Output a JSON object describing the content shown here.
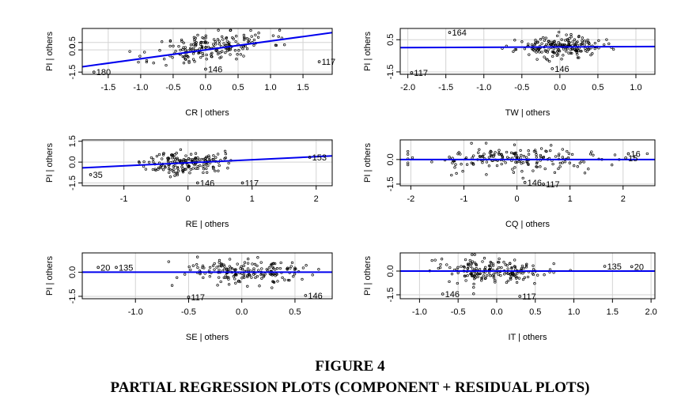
{
  "caption": {
    "number": "FIGURE 4",
    "title": "PARTIAL REGRESSION PLOTS (COMPONENT + RESIDUAL PLOTS)"
  },
  "colors": {
    "fit_line": "#0000ee",
    "points": "#000000",
    "grid": "#d3d3d3",
    "frame": "#000000"
  },
  "chart_data": [
    {
      "type": "scatter",
      "id": "cr",
      "xlabel": "CR | others",
      "ylabel": "PI | others",
      "xlim": [
        -1.9,
        1.95
      ],
      "ylim": [
        -1.65,
        1.45
      ],
      "xticks": [
        "-1.5",
        "-1.0",
        "-0.5",
        "0.0",
        "0.5",
        "1.0",
        "1.5"
      ],
      "yticks": [
        "-1.5",
        "0.0",
        "0.5"
      ],
      "fit": {
        "intercept": 0.0,
        "slope": 0.6
      },
      "center": [
        0.1,
        0.15
      ],
      "spread": [
        0.45,
        0.5
      ],
      "n": 190,
      "seed": 11,
      "labeled_points": [
        {
          "label": "180",
          "x": -1.72,
          "y": -1.5
        },
        {
          "label": "146",
          "x": 0.0,
          "y": -1.3
        },
        {
          "label": "117",
          "x": 1.75,
          "y": -0.8
        }
      ]
    },
    {
      "type": "scatter",
      "id": "tw",
      "xlabel": "TW | others",
      "ylabel": "PI | others",
      "xlim": [
        -2.1,
        1.25
      ],
      "ylim": [
        -1.65,
        1.2
      ],
      "xticks": [
        "-2.0",
        "-1.5",
        "-1.0",
        "-0.5",
        "0.0",
        "0.5",
        "1.0"
      ],
      "yticks": [
        "-1.5",
        "0.5"
      ],
      "fit": {
        "intercept": 0.05,
        "slope": 0.02
      },
      "center": [
        0.0,
        0.0
      ],
      "spread": [
        0.28,
        0.3
      ],
      "n": 190,
      "seed": 23,
      "labeled_points": [
        {
          "label": "164",
          "x": -1.45,
          "y": 0.95
        },
        {
          "label": "117",
          "x": -1.95,
          "y": -1.55
        },
        {
          "label": "146",
          "x": -0.1,
          "y": -1.3
        }
      ]
    },
    {
      "type": "scatter",
      "id": "re",
      "xlabel": "RE | others",
      "ylabel": "PI | others",
      "xlim": [
        -1.65,
        2.25
      ],
      "ylim": [
        -1.7,
        1.6
      ],
      "xticks": [
        "-1",
        "0",
        "1",
        "2"
      ],
      "yticks": [
        "-1.5",
        "0.0",
        "1.5"
      ],
      "fit": {
        "intercept": -0.05,
        "slope": 0.22
      },
      "center": [
        -0.05,
        0.0
      ],
      "spread": [
        0.3,
        0.4
      ],
      "n": 170,
      "seed": 37,
      "labeled_points": [
        {
          "label": "35",
          "x": -1.52,
          "y": -0.9
        },
        {
          "label": "146",
          "x": 0.15,
          "y": -1.5
        },
        {
          "label": "117",
          "x": 0.85,
          "y": -1.5
        },
        {
          "label": "153",
          "x": 1.9,
          "y": 0.35
        }
      ]
    },
    {
      "type": "scatter",
      "id": "cq",
      "xlabel": "CQ | others",
      "ylabel": "PI | others",
      "xlim": [
        -2.2,
        2.6
      ],
      "ylim": [
        -1.6,
        1.2
      ],
      "xticks": [
        "-2",
        "-1",
        "0",
        "1",
        "2"
      ],
      "yticks": [
        "-1.5",
        "0.0"
      ],
      "fit": {
        "intercept": 0.0,
        "slope": 0.0
      },
      "center": [
        0.0,
        0.0
      ],
      "spread": [
        0.95,
        0.4
      ],
      "n": 180,
      "seed": 53,
      "labeled_points": [
        {
          "label": "146",
          "x": 0.15,
          "y": -1.4
        },
        {
          "label": "117",
          "x": 0.5,
          "y": -1.5
        },
        {
          "label": "16",
          "x": 2.1,
          "y": 0.35
        },
        {
          "label": "15",
          "x": 2.05,
          "y": 0.1
        }
      ]
    },
    {
      "type": "scatter",
      "id": "se",
      "xlabel": "SE | others",
      "ylabel": "PI | others",
      "xlim": [
        -1.5,
        0.85
      ],
      "ylim": [
        -1.65,
        1.2
      ],
      "xticks": [
        "-1.0",
        "-0.5",
        "0.0",
        "0.5"
      ],
      "yticks": [
        "-1.5",
        "0.0"
      ],
      "fit": {
        "intercept": 0.0,
        "slope": 0.0
      },
      "center": [
        0.05,
        0.0
      ],
      "spread": [
        0.33,
        0.4
      ],
      "n": 185,
      "seed": 71,
      "labeled_points": [
        {
          "label": "20",
          "x": -1.35,
          "y": 0.3
        },
        {
          "label": "135",
          "x": -1.18,
          "y": 0.3
        },
        {
          "label": "117",
          "x": -0.5,
          "y": -1.55
        },
        {
          "label": "146",
          "x": 0.6,
          "y": -1.45
        }
      ]
    },
    {
      "type": "scatter",
      "id": "it",
      "xlabel": "IT | others",
      "ylabel": "PI | others",
      "xlim": [
        -1.25,
        2.05
      ],
      "ylim": [
        -1.75,
        1.15
      ],
      "xticks": [
        "-1.0",
        "-0.5",
        "0.0",
        "0.5",
        "1.0",
        "1.5",
        "2.0"
      ],
      "yticks": [
        "-1.5",
        "0.0"
      ],
      "fit": {
        "intercept": 0.0,
        "slope": 0.0
      },
      "center": [
        0.0,
        0.0
      ],
      "spread": [
        0.35,
        0.4
      ],
      "n": 185,
      "seed": 89,
      "labeled_points": [
        {
          "label": "146",
          "x": -0.7,
          "y": -1.45
        },
        {
          "label": "117",
          "x": 0.3,
          "y": -1.6
        },
        {
          "label": "135",
          "x": 1.4,
          "y": 0.3
        },
        {
          "label": "20",
          "x": 1.75,
          "y": 0.28
        }
      ]
    }
  ]
}
